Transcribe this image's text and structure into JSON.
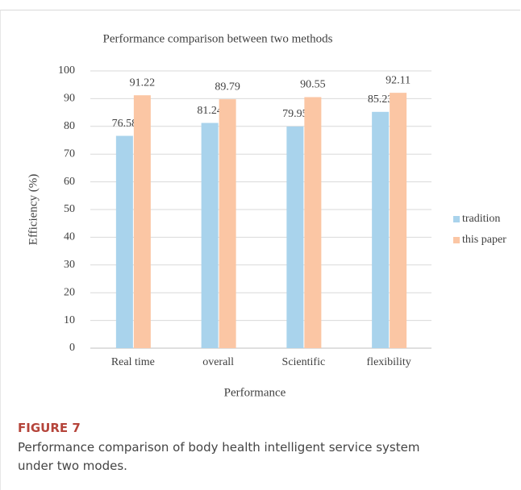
{
  "chart_data": {
    "type": "bar",
    "title": "Performance comparison between two methods",
    "x_label": "Performance",
    "y_label": "Efficiency (%)",
    "categories": [
      "Real time",
      "overall",
      "Scientific",
      "flexibility"
    ],
    "series": [
      {
        "name": "tradition",
        "color": "#a9d3ec",
        "values": [
          76.58,
          81.24,
          79.95,
          85.23
        ]
      },
      {
        "name": "this paper",
        "color": "#fbc6a4",
        "values": [
          91.22,
          89.79,
          90.55,
          92.11
        ]
      }
    ],
    "ylim": [
      0,
      100
    ],
    "yticks": [
      0,
      10,
      20,
      30,
      40,
      50,
      60,
      70,
      80,
      90,
      100
    ],
    "grid": true,
    "legend": "right"
  },
  "caption": {
    "label": "FIGURE 7",
    "text": "Performance comparison of body health intelligent service system under two modes."
  }
}
